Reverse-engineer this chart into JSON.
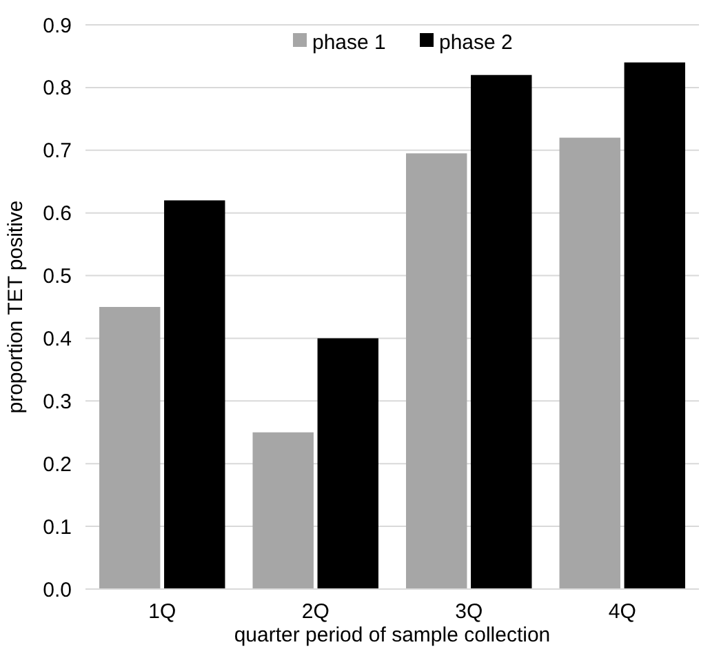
{
  "chart_data": {
    "type": "bar",
    "xlabel": "quarter period of sample collection",
    "ylabel": "proportion TET positive",
    "categories": [
      "1Q",
      "2Q",
      "3Q",
      "4Q"
    ],
    "series": [
      {
        "name": "phase 1",
        "color": "#a6a6a6",
        "values": [
          0.45,
          0.25,
          0.695,
          0.72
        ]
      },
      {
        "name": "phase 2",
        "color": "#000000",
        "values": [
          0.62,
          0.4,
          0.82,
          0.84
        ]
      }
    ],
    "ylim": [
      0,
      0.9
    ],
    "yticks": [
      {
        "value": 0,
        "label": "0.0"
      },
      {
        "value": 0.1,
        "label": "0.1"
      },
      {
        "value": 0.2,
        "label": "0.2"
      },
      {
        "value": 0.3,
        "label": "0.3"
      },
      {
        "value": 0.4,
        "label": "0.4"
      },
      {
        "value": 0.5,
        "label": "0.5"
      },
      {
        "value": 0.6,
        "label": "0.6"
      },
      {
        "value": 0.7,
        "label": "0.7"
      },
      {
        "value": 0.8,
        "label": "0.8"
      },
      {
        "value": 0.9,
        "label": "0.9"
      }
    ],
    "grid": "y",
    "legend": "top"
  }
}
